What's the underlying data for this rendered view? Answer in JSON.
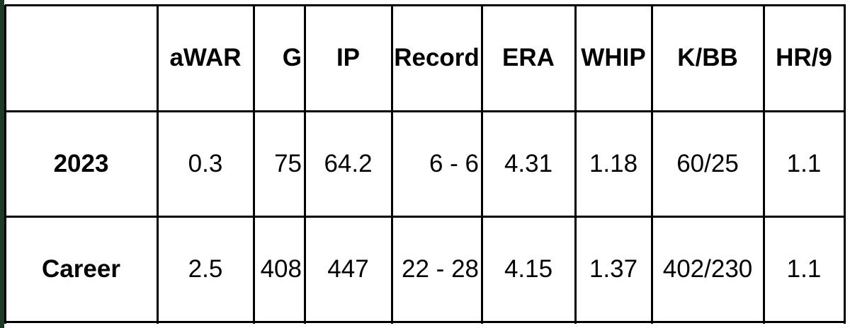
{
  "table": {
    "header": [
      "",
      "aWAR",
      "G",
      "IP",
      "Record",
      "ERA",
      "WHIP",
      "K/BB",
      "HR/9"
    ],
    "rows": [
      [
        "2023",
        "0.3",
        "75",
        "64.2",
        "6 - 6",
        "4.31",
        "1.18",
        "60/25",
        "1.1"
      ],
      [
        "Career",
        "2.5",
        "408",
        "447",
        "22 - 28",
        "4.15",
        "1.37",
        "402/230",
        "1.1"
      ]
    ]
  }
}
